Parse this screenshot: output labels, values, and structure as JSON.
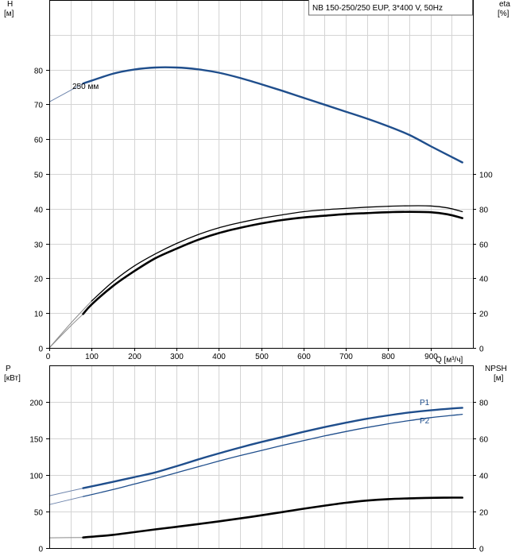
{
  "chart_data": {
    "type": "line",
    "title": "NB 150-250/250 EUP, 3*400 V, 50Hz",
    "colors": {
      "head": "#1f4e8c",
      "power": "#1f4e8c",
      "efficiency": "#000000",
      "npsh": "#000000",
      "grid": "#d4d4d4"
    },
    "upper": {
      "x_label": "Q [м³/ч]",
      "x_ticks": [
        0,
        100,
        200,
        300,
        400,
        500,
        600,
        700,
        800,
        900
      ],
      "x_range": [
        0,
        1000
      ],
      "left_axis": {
        "label_line1": "H",
        "label_line2": "[м]",
        "range": [
          0,
          100
        ],
        "ticks": [
          0,
          10,
          20,
          30,
          40,
          50,
          60,
          70,
          80
        ]
      },
      "right_axis": {
        "label_line1": "eta",
        "label_line2": "[%]",
        "range": [
          0,
          200
        ],
        "ticks": [
          0,
          20,
          40,
          60,
          80,
          100
        ]
      },
      "series": [
        {
          "name": "250 мм",
          "axis": "left",
          "style": "thick-blue",
          "x": [
            0,
            80,
            150,
            200,
            250,
            300,
            350,
            400,
            450,
            500,
            550,
            600,
            650,
            700,
            750,
            800,
            850,
            900,
            940,
            975
          ],
          "y": [
            70.7,
            76,
            78.8,
            80,
            80.6,
            80.6,
            80.1,
            79.1,
            77.6,
            75.8,
            73.9,
            71.9,
            69.9,
            67.9,
            65.9,
            63.7,
            61.2,
            58,
            55.5,
            53.3
          ]
        },
        {
          "name": "",
          "axis": "right",
          "style": "thin-black",
          "x": [
            0,
            50,
            100,
            150,
            200,
            250,
            300,
            350,
            400,
            450,
            500,
            550,
            600,
            650,
            700,
            750,
            800,
            850,
            900,
            940,
            975
          ],
          "y": [
            0,
            14,
            27,
            38,
            47,
            54,
            60,
            65,
            69,
            72,
            74.5,
            76.5,
            78.3,
            79.4,
            80.2,
            80.9,
            81.4,
            81.7,
            81.6,
            80.5,
            78.3
          ]
        },
        {
          "name": "",
          "axis": "right",
          "style": "thick-black",
          "x": [
            0,
            50,
            80,
            100,
            150,
            200,
            250,
            300,
            350,
            400,
            450,
            500,
            550,
            600,
            650,
            700,
            750,
            800,
            850,
            900,
            940,
            975
          ],
          "y": [
            0,
            12.5,
            19.5,
            25,
            35.5,
            44,
            51.5,
            57,
            62,
            66,
            69,
            71.5,
            73.5,
            75,
            76,
            76.9,
            77.5,
            78,
            78.2,
            78,
            76.8,
            74.6
          ]
        }
      ]
    },
    "lower": {
      "left_axis": {
        "label_line1": "P",
        "label_line2": "[кВт]",
        "range": [
          0,
          250
        ],
        "ticks": [
          0,
          50,
          100,
          150,
          200
        ]
      },
      "right_axis": {
        "label_line1": "NPSH",
        "label_line2": "[м]",
        "range": [
          0,
          100
        ],
        "ticks": [
          0,
          20,
          40,
          60,
          80
        ]
      },
      "series": [
        {
          "name": "P1",
          "axis": "left",
          "style": "thick-blue",
          "x": [
            0,
            80,
            150,
            200,
            250,
            300,
            350,
            400,
            450,
            500,
            550,
            600,
            650,
            700,
            750,
            800,
            850,
            900,
            950,
            975
          ],
          "y": [
            71.5,
            82,
            90.5,
            97,
            103.5,
            112,
            121,
            129.5,
            137.5,
            145,
            152,
            159,
            165.5,
            171.5,
            177,
            181.5,
            185.5,
            188.5,
            191,
            192
          ]
        },
        {
          "name": "P2",
          "axis": "left",
          "style": "thin-blue",
          "x": [
            0,
            80,
            150,
            200,
            250,
            300,
            350,
            400,
            450,
            500,
            550,
            600,
            650,
            700,
            750,
            800,
            850,
            900,
            950,
            975
          ],
          "y": [
            59.5,
            70.5,
            80,
            87.5,
            95,
            103,
            111,
            119,
            126.5,
            133.5,
            140.5,
            147,
            153.5,
            159.5,
            165,
            170,
            174.5,
            178.5,
            181.5,
            183
          ]
        },
        {
          "name": "",
          "axis": "right",
          "style": "thick-black",
          "x": [
            0,
            80,
            150,
            200,
            250,
            300,
            350,
            400,
            450,
            500,
            550,
            600,
            650,
            700,
            750,
            800,
            850,
            900,
            950,
            975
          ],
          "y": [
            5.6,
            5.8,
            7.2,
            8.7,
            10.2,
            11.6,
            13.1,
            14.6,
            16.2,
            17.9,
            19.7,
            21.5,
            23.2,
            24.8,
            26,
            26.8,
            27.2,
            27.5,
            27.6,
            27.6
          ]
        }
      ]
    }
  }
}
